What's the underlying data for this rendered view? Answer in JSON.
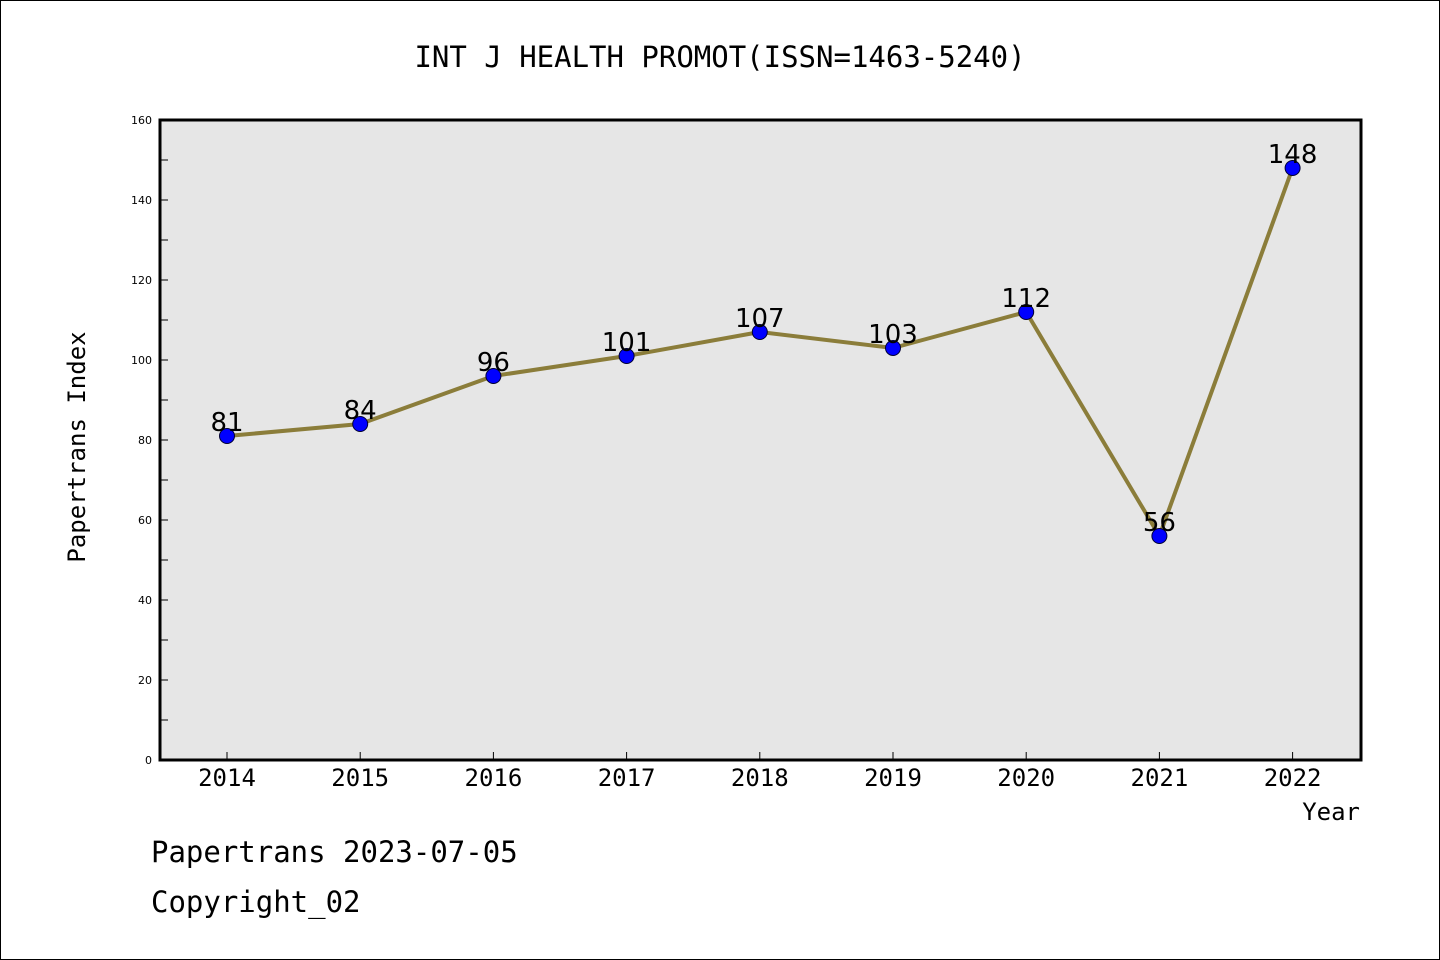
{
  "chart_data": {
    "type": "line",
    "title": "INT J HEALTH PROMOT(ISSN=1463-5240)",
    "xlabel": "Year",
    "ylabel": "Papertrans Index",
    "categories": [
      "2014",
      "2015",
      "2016",
      "2017",
      "2018",
      "2019",
      "2020",
      "2021",
      "2022"
    ],
    "series": [
      {
        "values": [
          81,
          84,
          96,
          101,
          107,
          103,
          112,
          56,
          148
        ]
      }
    ],
    "ylim": [
      0,
      160
    ],
    "yticks": [
      0,
      20,
      40,
      60,
      80,
      100,
      120,
      140,
      160
    ],
    "grid": false,
    "data_labels": true,
    "colors": {
      "line": "#8b7d3a",
      "marker": "#0000ff",
      "plot_bg": "#e6e6e6"
    }
  },
  "footer": {
    "line1": "Papertrans 2023-07-05",
    "line2": "Copyright_02"
  }
}
